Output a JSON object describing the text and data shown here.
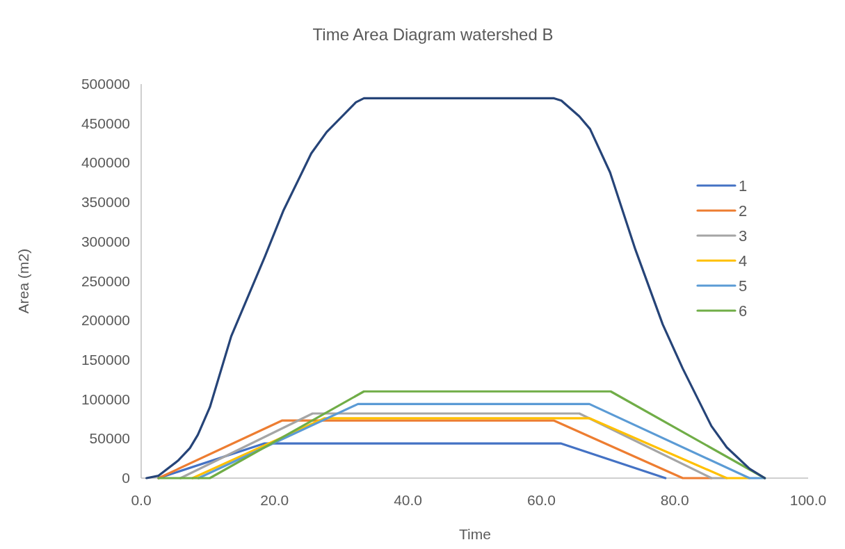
{
  "chart_data": {
    "type": "line",
    "title": "Time Area Diagram watershed B",
    "xlabel": "Time",
    "ylabel": "Area (m2)",
    "xlim": [
      0,
      100
    ],
    "xticks": [
      {
        "value": 0,
        "label": "0.0"
      },
      {
        "value": 20,
        "label": "20.0"
      },
      {
        "value": 40,
        "label": "40.0"
      },
      {
        "value": 60,
        "label": "60.0"
      },
      {
        "value": 80,
        "label": "80.0"
      },
      {
        "value": 100,
        "label": "100.0"
      }
    ],
    "ylim": [
      0,
      500000
    ],
    "yticks": [
      0,
      50000,
      100000,
      150000,
      200000,
      250000,
      300000,
      350000,
      400000,
      450000,
      500000
    ],
    "grid": false,
    "legend": "right",
    "marker": "none",
    "line_style": "solid",
    "series": [
      {
        "name": "1",
        "color": "#4472c4",
        "x": [
          2.6,
          18.5,
          62.9,
          78.6
        ],
        "values": [
          0,
          44000,
          44000,
          0
        ]
      },
      {
        "name": "2",
        "color": "#ed7d31",
        "x": [
          2.6,
          21.1,
          61.9,
          81.2,
          85.5
        ],
        "values": [
          0,
          73000,
          73000,
          0,
          0
        ]
      },
      {
        "name": "3",
        "color": "#a5a5a5",
        "x": [
          5.9,
          25.7,
          65.7,
          85.5,
          87.8
        ],
        "values": [
          0,
          82000,
          82000,
          0,
          0
        ]
      },
      {
        "name": "4",
        "color": "#ffc000",
        "x": [
          7.7,
          27.5,
          67.2,
          87.8,
          91.2
        ],
        "values": [
          0,
          76000,
          76000,
          0,
          0
        ]
      },
      {
        "name": "5",
        "color": "#5b9bd5",
        "x": [
          8.6,
          32.5,
          67.2,
          91.2,
          93.5
        ],
        "values": [
          0,
          94000,
          94000,
          0,
          0
        ]
      },
      {
        "name": "6",
        "color": "#70ad47",
        "x": [
          2.6,
          10.3,
          33.4,
          70.4,
          93.5
        ],
        "values": [
          0,
          0,
          110000,
          110000,
          0
        ]
      },
      {
        "color": "#264478",
        "x": [
          0.8,
          2.6,
          5.5,
          7.3,
          8.5,
          10.3,
          13.5,
          18.5,
          21.3,
          25.5,
          27.8,
          32.2,
          33.4,
          61.9,
          63.0,
          65.7,
          67.3,
          70.3,
          74.1,
          78.2,
          81.2,
          85.5,
          87.8,
          91.2,
          93.5
        ],
        "values": [
          0,
          3000,
          22000,
          38000,
          55000,
          90000,
          180000,
          280000,
          339000,
          412000,
          439000,
          477000,
          482000,
          482000,
          479000,
          459000,
          443000,
          388000,
          290000,
          195000,
          139000,
          66000,
          39000,
          12000,
          0
        ]
      }
    ]
  }
}
